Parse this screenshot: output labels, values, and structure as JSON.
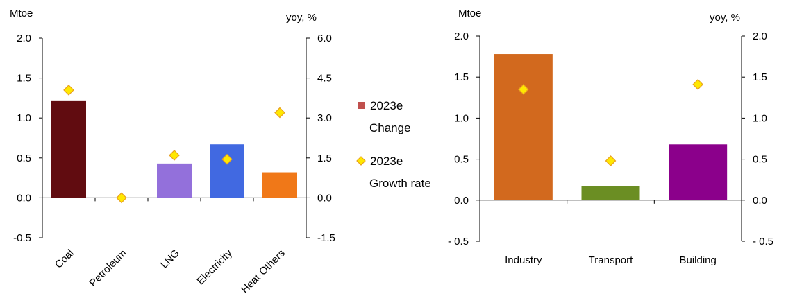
{
  "chart_data": [
    {
      "type": "bar",
      "categories": [
        "Coal",
        "Petroleum",
        "LNG",
        "Electricity",
        "Heat·Others"
      ],
      "series": [
        {
          "name": "2023e Change",
          "axis": "left",
          "values": [
            1.22,
            0.0,
            0.43,
            0.67,
            0.32
          ]
        },
        {
          "name": "2023e Growth rate",
          "axis": "right",
          "values": [
            4.05,
            0.0,
            1.6,
            1.45,
            3.2
          ]
        }
      ],
      "bar_colors": [
        "#610C10",
        "#8B4513",
        "#9370DB",
        "#4169E1",
        "#F07818"
      ],
      "left_axis": {
        "unit": "Mtoe",
        "ylim": [
          -0.5,
          2.0
        ],
        "ticks": [
          "2.0",
          "1.5",
          "1.0",
          "0.5",
          "0.0",
          "-0.5"
        ]
      },
      "right_axis": {
        "unit": "yoy, %",
        "ylim": [
          -1.5,
          6.0
        ],
        "ticks": [
          "6.0",
          "4.5",
          "3.0",
          "1.5",
          "0.0",
          "-1.5"
        ]
      },
      "category_labels_rotated": true
    },
    {
      "type": "bar",
      "categories": [
        "Industry",
        "Transport",
        "Building"
      ],
      "series": [
        {
          "name": "2023e Change",
          "axis": "left",
          "values": [
            1.78,
            0.17,
            0.68
          ]
        },
        {
          "name": "2023e Growth rate",
          "axis": "right",
          "values": [
            1.35,
            0.48,
            1.41
          ]
        }
      ],
      "bar_colors": [
        "#D2691E",
        "#6B8E23",
        "#8B008B"
      ],
      "left_axis": {
        "unit": "Mtoe",
        "ylim": [
          -0.5,
          2.0
        ],
        "ticks": [
          "2.0",
          "1.5",
          "1.0",
          "0.5",
          "0.0",
          "- 0.5"
        ]
      },
      "right_axis": {
        "unit": "yoy, %",
        "ylim": [
          -0.5,
          2.0
        ],
        "ticks": [
          "2.0",
          "1.5",
          "1.0",
          "0.5",
          "0.0",
          "- 0.5"
        ]
      },
      "category_labels_rotated": false
    }
  ],
  "legend": {
    "items": [
      {
        "line1": "2023e",
        "line2": "Change",
        "color": "#C0504D",
        "marker": "square"
      },
      {
        "line1": "2023e",
        "line2": "Growth rate",
        "color": "#FFE800",
        "marker": "diamond"
      }
    ]
  },
  "marker_style": {
    "fill": "#FFE800",
    "stroke": "#E8A020"
  }
}
